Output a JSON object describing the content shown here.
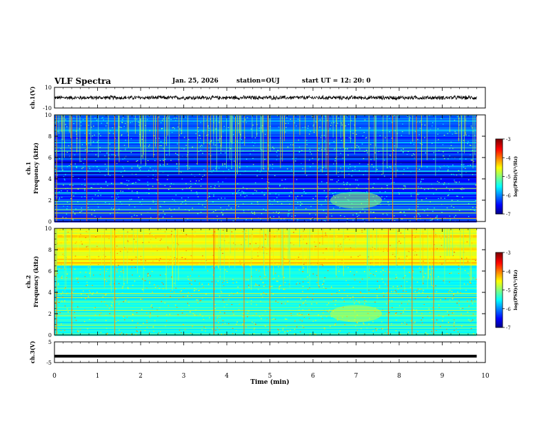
{
  "header": {
    "title": "VLF Spectra",
    "date": "Jan. 25, 2026",
    "station": "station=OUJ",
    "start": "start  UT =  12: 20: 0"
  },
  "chart_data": [
    {
      "type": "line",
      "name": "ch1-waveform",
      "ylabel": "ch.1(V)",
      "ylim": [
        -10,
        10
      ],
      "yticks": [
        "10",
        "-10"
      ],
      "xlim": [
        0,
        10
      ],
      "series": [
        {
          "name": "ch.1 amplitude",
          "approx_level": 0,
          "noise_band": [
            -2,
            2
          ]
        }
      ]
    },
    {
      "type": "heatmap",
      "name": "ch1-spectrogram",
      "ylabel_line1": "ch.1",
      "ylabel_line2": "Frequency (kHz)",
      "ylim": [
        0,
        10
      ],
      "yticks": [
        "0",
        "2",
        "4",
        "6",
        "8",
        "10"
      ],
      "xlim": [
        0,
        9.8
      ],
      "colorbar": {
        "label": "log(PSD)(V²/Hz)",
        "range": [
          -7,
          -3
        ],
        "ticks": [
          "-3",
          "-4",
          "-5",
          "-6",
          "-7"
        ]
      },
      "background_level": -6.3,
      "lines_khz": [
        {
          "f": 0.3,
          "level": -4.2
        },
        {
          "f": 0.8,
          "level": -4.8
        },
        {
          "f": 1.1,
          "level": -5.0
        },
        {
          "f": 1.6,
          "level": -5.1
        },
        {
          "f": 1.9,
          "level": -5.2
        },
        {
          "f": 2.7,
          "level": -5.4
        },
        {
          "f": 3.1,
          "level": -4.8
        },
        {
          "f": 3.5,
          "level": -5.3
        },
        {
          "f": 4.7,
          "level": -5.4
        },
        {
          "f": 5.2,
          "level": -5.6
        },
        {
          "f": 6.6,
          "level": -5.2
        },
        {
          "f": 6.9,
          "level": -5.2
        },
        {
          "f": 7.4,
          "level": -5.5
        },
        {
          "f": 8.6,
          "level": -5.8
        },
        {
          "f": 9.4,
          "level": -5.8
        }
      ],
      "bursts_min": [
        0.05,
        0.4,
        0.75,
        1.4,
        2.4,
        3.55,
        4.2,
        4.95,
        5.55,
        6.1,
        6.35,
        7.3,
        7.85,
        8.4,
        9.8
      ],
      "feature": {
        "t_start": 6.4,
        "t_end": 7.6,
        "f_low": 1.2,
        "f_high": 2.8,
        "level": -4.9
      }
    },
    {
      "type": "heatmap",
      "name": "ch2-spectrogram",
      "ylabel_line1": "ch.2",
      "ylabel_line2": "Frequency (kHz)",
      "ylim": [
        0,
        10
      ],
      "yticks": [
        "0",
        "2",
        "4",
        "6",
        "8",
        "10"
      ],
      "xlim": [
        0,
        9.8
      ],
      "colorbar": {
        "label": "log(PSD)(V²/Hz)",
        "range": [
          -7,
          -3
        ],
        "ticks": [
          "-3",
          "-4",
          "-5",
          "-6",
          "-7"
        ]
      },
      "background_level": -5.4,
      "upper_band": {
        "f_low": 6.5,
        "f_high": 10,
        "level": -4.5
      },
      "lines_khz": [
        {
          "f": 0.9,
          "level": -4.8
        },
        {
          "f": 1.8,
          "level": -4.9
        },
        {
          "f": 2.3,
          "level": -4.7
        },
        {
          "f": 3.5,
          "level": -4.6
        },
        {
          "f": 3.9,
          "level": -4.7
        },
        {
          "f": 6.8,
          "level": -4.2
        }
      ],
      "bursts_min": [
        0.05,
        0.4,
        1.4,
        3.7,
        4.4,
        5.0,
        7.75,
        8.3,
        8.8
      ],
      "feature": {
        "t_start": 6.4,
        "t_end": 7.6,
        "f_low": 1.2,
        "f_high": 2.8,
        "level": -4.7
      }
    },
    {
      "type": "line",
      "name": "ch3-waveform",
      "ylabel": "ch.3(V)",
      "ylim": [
        -5,
        5
      ],
      "yticks": [
        "5",
        "-5"
      ],
      "xlim": [
        0,
        10
      ],
      "series": [
        {
          "name": "ch.3 level",
          "level": -1.9
        }
      ]
    }
  ],
  "xaxis": {
    "label": "Time (min)",
    "ticks": [
      "0",
      "1",
      "2",
      "3",
      "4",
      "5",
      "6",
      "7",
      "8",
      "9",
      "10"
    ]
  }
}
